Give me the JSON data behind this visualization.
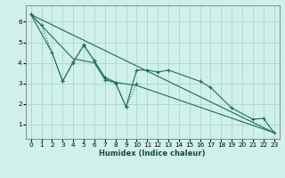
{
  "bg_color": "#cff0eb",
  "grid_color": "#b2d8d2",
  "line_color": "#1a6b5a",
  "xlabel": "Humidex (Indice chaleur)",
  "xlim": [
    -0.5,
    23.5
  ],
  "ylim": [
    0.3,
    6.8
  ],
  "xticks": [
    0,
    1,
    2,
    3,
    4,
    5,
    6,
    7,
    8,
    9,
    10,
    11,
    12,
    13,
    14,
    15,
    16,
    17,
    18,
    19,
    20,
    21,
    22,
    23
  ],
  "yticks": [
    1,
    2,
    3,
    4,
    5,
    6
  ],
  "series": [
    {
      "x": [
        0,
        1,
        3,
        4,
        5,
        6,
        7,
        8,
        9,
        10
      ],
      "y": [
        6.35,
        5.85,
        3.1,
        4.0,
        4.9,
        4.1,
        3.15,
        3.0,
        1.85,
        3.0
      ],
      "style": ":",
      "marker": "+"
    },
    {
      "x": [
        0,
        2,
        3,
        4,
        5,
        6,
        7,
        8,
        9,
        10,
        11,
        12,
        13,
        16,
        17,
        19,
        21,
        22,
        23
      ],
      "y": [
        6.35,
        4.5,
        3.1,
        4.05,
        4.85,
        4.1,
        3.3,
        3.05,
        1.85,
        3.65,
        3.65,
        3.55,
        3.65,
        3.1,
        2.8,
        1.8,
        1.25,
        1.3,
        0.6
      ],
      "style": "-",
      "marker": "+"
    },
    {
      "x": [
        0,
        4,
        5,
        6,
        7,
        8,
        10,
        23
      ],
      "y": [
        6.35,
        4.2,
        4.1,
        4.0,
        3.2,
        3.05,
        2.9,
        0.6
      ],
      "style": "-",
      "marker": null
    },
    {
      "x": [
        0,
        23
      ],
      "y": [
        6.35,
        0.6
      ],
      "style": "-",
      "marker": null
    }
  ]
}
